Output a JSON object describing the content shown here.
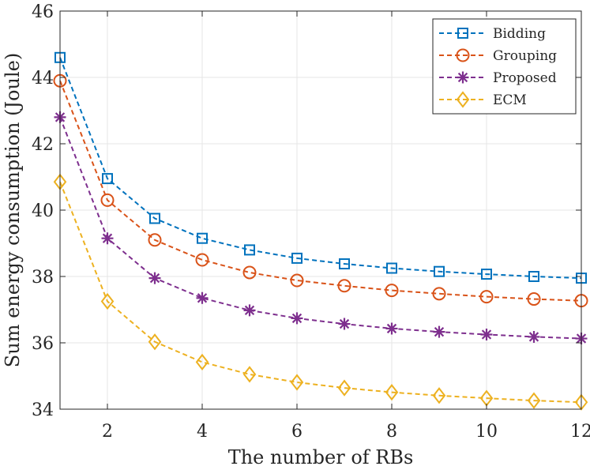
{
  "chart_data": {
    "type": "line",
    "title": "",
    "xlabel": "The number of RBs",
    "ylabel": "Sum energy consumption (Joule)",
    "xlim": [
      1,
      12
    ],
    "ylim": [
      34,
      46
    ],
    "xticks": [
      2,
      4,
      6,
      8,
      10,
      12
    ],
    "yticks": [
      34,
      36,
      38,
      40,
      42,
      44,
      46
    ],
    "grid": true,
    "legend_position": "top-right",
    "x": [
      1,
      2,
      3,
      4,
      5,
      6,
      7,
      8,
      9,
      10,
      11,
      12
    ],
    "series": [
      {
        "name": "Bidding",
        "marker": "square",
        "color": "#0072BD",
        "values": [
          44.6,
          40.95,
          39.75,
          39.15,
          38.8,
          38.55,
          38.38,
          38.25,
          38.15,
          38.07,
          38.0,
          37.95
        ]
      },
      {
        "name": "Grouping",
        "marker": "circle",
        "color": "#D95319",
        "values": [
          43.9,
          40.3,
          39.1,
          38.5,
          38.12,
          37.88,
          37.72,
          37.58,
          37.48,
          37.39,
          37.32,
          37.27
        ]
      },
      {
        "name": "Proposed",
        "marker": "asterisk",
        "color": "#7E2F8E",
        "values": [
          42.8,
          39.15,
          37.95,
          37.35,
          36.98,
          36.74,
          36.57,
          36.43,
          36.33,
          36.25,
          36.18,
          36.13
        ]
      },
      {
        "name": "ECM",
        "marker": "diamond",
        "color": "#EDB120",
        "values": [
          40.85,
          37.25,
          36.03,
          35.42,
          35.05,
          34.81,
          34.64,
          34.51,
          34.41,
          34.33,
          34.26,
          34.21
        ]
      }
    ]
  }
}
